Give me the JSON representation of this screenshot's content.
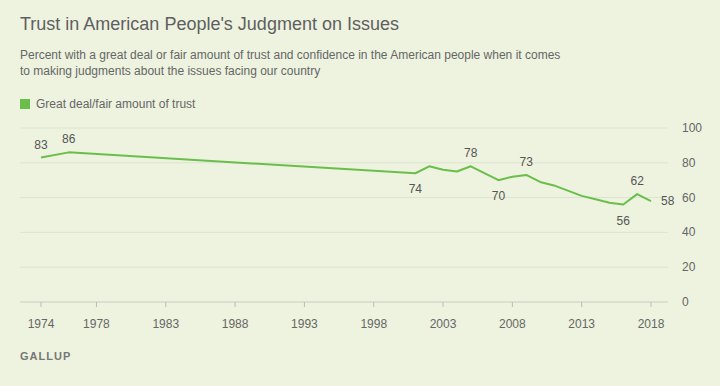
{
  "chart_data": {
    "type": "line",
    "title": "Trust in American People's Judgment on Issues",
    "subtitle": "Percent with a great deal or fair amount of trust and confidence in the American people when it comes to making judgments about the issues facing our country",
    "source": "GALLUP",
    "x": [
      1974,
      1976,
      2001,
      2002,
      2003,
      2004,
      2005,
      2007,
      2008,
      2009,
      2010,
      2011,
      2012,
      2013,
      2014,
      2015,
      2016,
      2017,
      2018
    ],
    "series": [
      {
        "name": "Great deal/fair amount of trust",
        "color": "#6abf4b",
        "values": [
          83,
          86,
          74,
          78,
          76,
          75,
          78,
          70,
          72,
          73,
          69,
          67,
          64,
          61,
          59,
          57,
          56,
          62,
          58
        ],
        "value_labels": [
          "83",
          "86",
          "74",
          null,
          null,
          null,
          "78",
          "70",
          null,
          "73",
          null,
          null,
          null,
          null,
          null,
          null,
          "56",
          "62",
          "58"
        ]
      }
    ],
    "xlim": [
      1974,
      2018
    ],
    "xticks": [
      1974,
      1978,
      1983,
      1988,
      1993,
      1998,
      2003,
      2008,
      2013,
      2018
    ],
    "ylim": [
      0,
      100
    ],
    "yticks": [
      0,
      20,
      40,
      60,
      80,
      100
    ],
    "grid": true,
    "data_labels": true,
    "legend": "top-left"
  }
}
